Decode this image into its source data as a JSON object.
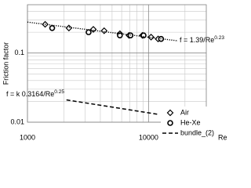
{
  "chart_data": {
    "type": "scatter",
    "x_label": "Re",
    "y_label": "Friction factor",
    "xlim": [
      1000,
      30000
    ],
    "ylim": [
      0.01,
      0.5
    ],
    "xticks": [
      1000,
      10000
    ],
    "yticks": [
      0.01,
      0.1
    ],
    "log_x": true,
    "log_y": true,
    "grid": true,
    "minor_grid": true,
    "legend": "lower right",
    "series": [
      {
        "name": "Air",
        "color": "#000000",
        "marker": "diamond",
        "x": [
          1400,
          2200,
          3500,
          4300,
          5800,
          6900,
          8900,
          10500,
          12000
        ],
        "values": [
          0.26,
          0.23,
          0.22,
          0.21,
          0.19,
          0.18,
          0.18,
          0.17,
          0.16
        ]
      },
      {
        "name": "He-Xe",
        "color": "#000000",
        "marker": "circle",
        "x": [
          1600,
          3200,
          5800,
          7100,
          9100,
          12700
        ],
        "values": [
          0.23,
          0.2,
          0.18,
          0.18,
          0.18,
          0.16
        ]
      },
      {
        "name": "bundle_(2)",
        "color": "#000000",
        "marker": "none",
        "line": "dashed",
        "x": [
          2100,
          12000
        ],
        "values": [
          0.021,
          0.013
        ]
      },
      {
        "color": "#000000",
        "marker": "none",
        "line": "dotted",
        "x": [
          1000,
          17500
        ],
        "values": [
          0.28,
          0.15
        ]
      }
    ],
    "annotations": [
      {
        "text": "f = 1.39/Re",
        "sup": "0.23"
      },
      {
        "text": "f = k 0.3164/Re",
        "sup": "0.25"
      }
    ]
  }
}
